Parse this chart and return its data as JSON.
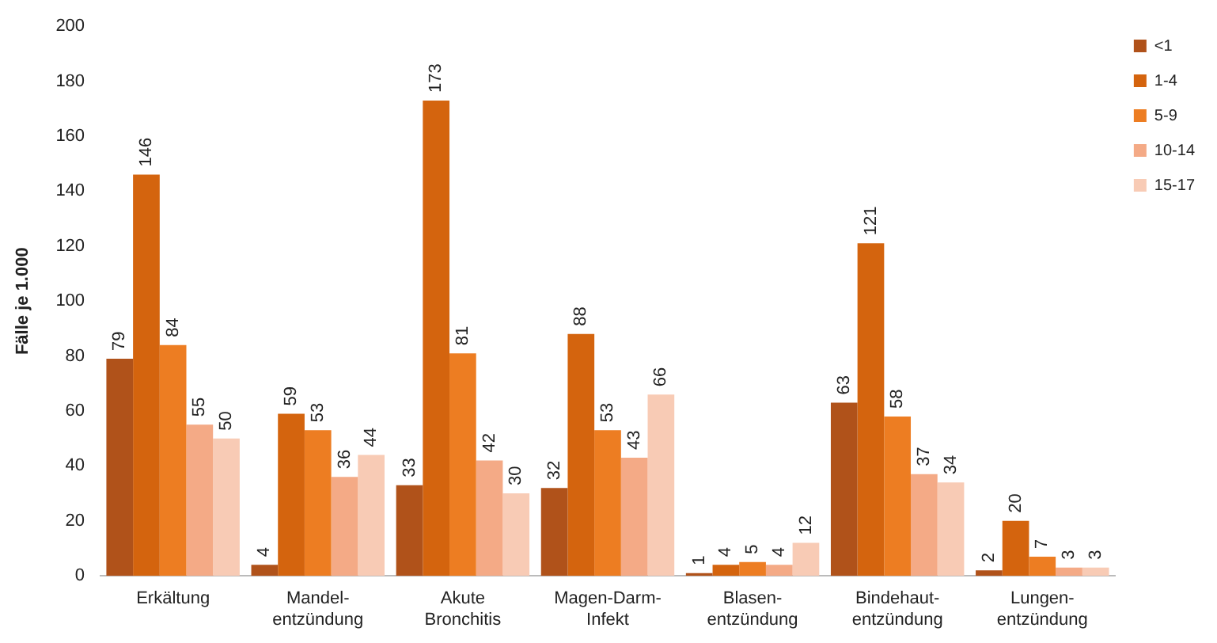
{
  "chart_data": {
    "type": "bar",
    "ylabel": "Fälle je 1.000",
    "categories": [
      "Erkältung",
      "Mandel-\nentzündung",
      "Akute\nBronchitis",
      "Magen-Darm-\nInfekt",
      "Blasen-\nentzündung",
      "Bindehaut-\nentzündung",
      "Lungen-\nentzündung"
    ],
    "series": [
      {
        "name": "<1",
        "color": "#b0521a",
        "values": [
          79,
          4,
          33,
          32,
          1,
          63,
          2
        ]
      },
      {
        "name": "1-4",
        "color": "#d4640e",
        "values": [
          146,
          59,
          173,
          88,
          4,
          121,
          20
        ]
      },
      {
        "name": "5-9",
        "color": "#ed7d22",
        "values": [
          84,
          53,
          81,
          53,
          5,
          58,
          7
        ]
      },
      {
        "name": "10-14",
        "color": "#f4aa86",
        "values": [
          55,
          36,
          42,
          43,
          4,
          37,
          3
        ]
      },
      {
        "name": "15-17",
        "color": "#f8cbb5",
        "values": [
          50,
          44,
          30,
          66,
          12,
          34,
          3
        ]
      }
    ],
    "ylim": [
      0,
      200
    ],
    "yticks": [
      0,
      20,
      40,
      60,
      80,
      100,
      120,
      140,
      160,
      180,
      200
    ],
    "grid": false,
    "legend": "top right",
    "data_labels": true
  }
}
